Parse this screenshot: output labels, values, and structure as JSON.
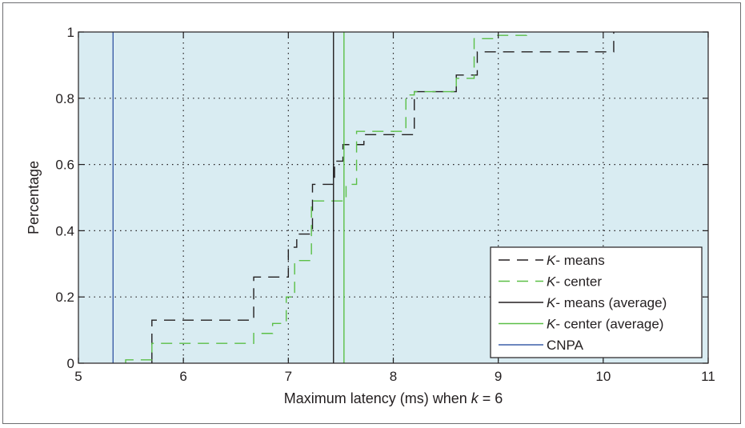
{
  "chart_data": {
    "type": "line",
    "title": "",
    "xlabel_prefix": "Maximum latency (ms) when ",
    "xlabel_var": "k",
    "xlabel_suffix": " = 6",
    "ylabel": "Percentage",
    "xlim": [
      5,
      11
    ],
    "ylim": [
      0,
      1
    ],
    "xticks": [
      5,
      6,
      7,
      8,
      9,
      10,
      11
    ],
    "yticks": [
      0,
      0.2,
      0.4,
      0.6,
      0.8,
      1
    ],
    "xtick_labels": [
      "5",
      "6",
      "7",
      "8",
      "9",
      "10",
      "11"
    ],
    "ytick_labels": [
      "0",
      "0.2",
      "0.4",
      "0.6",
      "0.8",
      "1"
    ],
    "grid": true,
    "legend_position": "bottom-right",
    "background_color": "#d9ecf2",
    "series": [
      {
        "name_italic": "K",
        "name_rest": "- means",
        "color": "#231f20",
        "style": "dashed-step",
        "x": [
          5.7,
          6.67,
          7.0,
          7.08,
          7.23,
          7.44,
          7.52,
          7.72,
          8.2,
          8.6,
          8.8,
          10.1
        ],
        "y": [
          0.13,
          0.26,
          0.35,
          0.39,
          0.54,
          0.61,
          0.66,
          0.69,
          0.82,
          0.87,
          0.94,
          1.0
        ],
        "end_x": 10.1
      },
      {
        "name_italic": "K",
        "name_rest": "- center",
        "color": "#5bbf47",
        "style": "dashed-step",
        "x": [
          5.45,
          5.7,
          6.67,
          6.85,
          6.98,
          7.06,
          7.22,
          7.55,
          7.65,
          8.12,
          8.2,
          8.6,
          8.77,
          8.98,
          9.27
        ],
        "y": [
          0.01,
          0.06,
          0.09,
          0.12,
          0.2,
          0.31,
          0.49,
          0.54,
          0.7,
          0.81,
          0.82,
          0.86,
          0.98,
          0.99,
          1.0
        ],
        "start_x": 5.45,
        "end_x": 9.27
      },
      {
        "name_italic": "K",
        "name_rest": "- means (average)",
        "color": "#231f20",
        "style": "vline",
        "x": 7.43
      },
      {
        "name_italic": "K",
        "name_rest": "- center (average)",
        "color": "#5bbf47",
        "style": "vline",
        "x": 7.53
      },
      {
        "name_italic": "",
        "name_rest": "CNPA",
        "color": "#3c5ea8",
        "style": "vline",
        "x": 5.33
      }
    ]
  }
}
